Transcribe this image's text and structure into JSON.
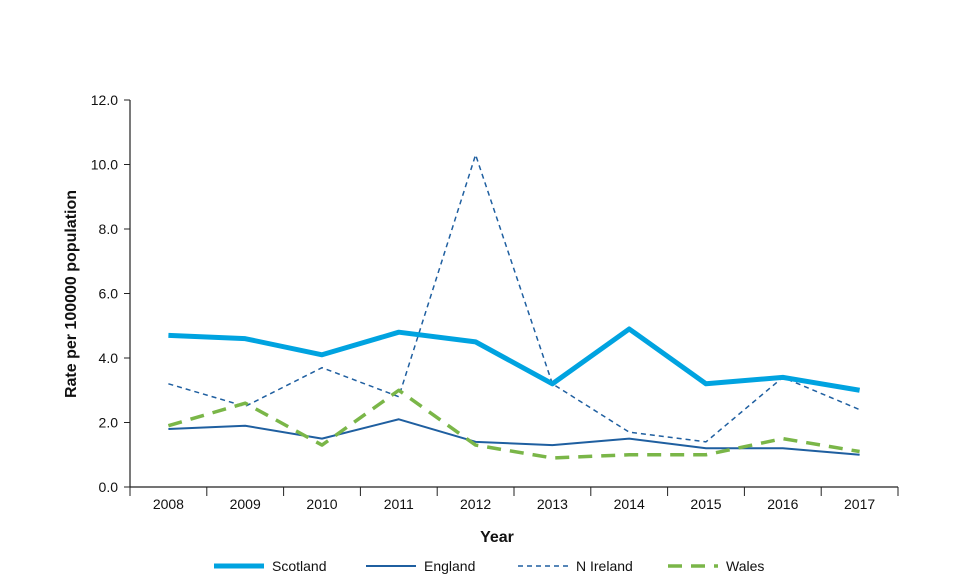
{
  "chart_data": {
    "type": "line",
    "title": "",
    "xlabel": "Year",
    "ylabel": "Rate per 100000 population",
    "ylim": [
      0,
      12
    ],
    "yticks": [
      "0.0",
      "2.0",
      "4.0",
      "6.0",
      "8.0",
      "10.0",
      "12.0"
    ],
    "categories": [
      "2008",
      "2009",
      "2010",
      "2011",
      "2012",
      "2013",
      "2014",
      "2015",
      "2016",
      "2017"
    ],
    "grid": false,
    "legend_position": "bottom",
    "series": [
      {
        "name": "Scotland",
        "color": "#00a3e0",
        "style": "solid-thick",
        "values": [
          4.7,
          4.6,
          4.1,
          4.8,
          4.5,
          3.2,
          4.9,
          3.2,
          3.4,
          3.0
        ]
      },
      {
        "name": "England",
        "color": "#1f5fa0",
        "style": "solid-thin",
        "values": [
          1.8,
          1.9,
          1.5,
          2.1,
          1.4,
          1.3,
          1.5,
          1.2,
          1.2,
          1.0
        ]
      },
      {
        "name": "N Ireland",
        "color": "#1f5fa0",
        "style": "dashed-thin",
        "values": [
          3.2,
          2.5,
          3.7,
          2.8,
          10.3,
          3.2,
          1.7,
          1.4,
          3.4,
          2.4
        ]
      },
      {
        "name": "Wales",
        "color": "#7ab648",
        "style": "dashed-thick",
        "values": [
          1.9,
          2.6,
          1.3,
          3.0,
          1.3,
          0.9,
          1.0,
          1.0,
          1.5,
          1.1
        ]
      }
    ]
  }
}
